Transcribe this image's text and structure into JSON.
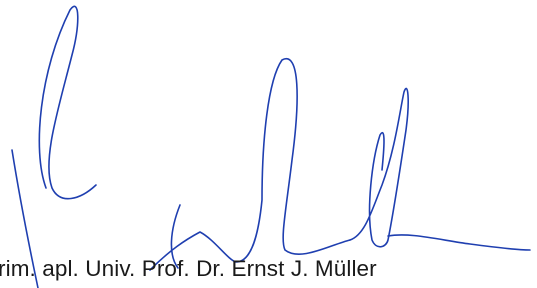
{
  "signature_caption": "rim. apl. Univ. Prof. Dr. Ernst J. Müller"
}
